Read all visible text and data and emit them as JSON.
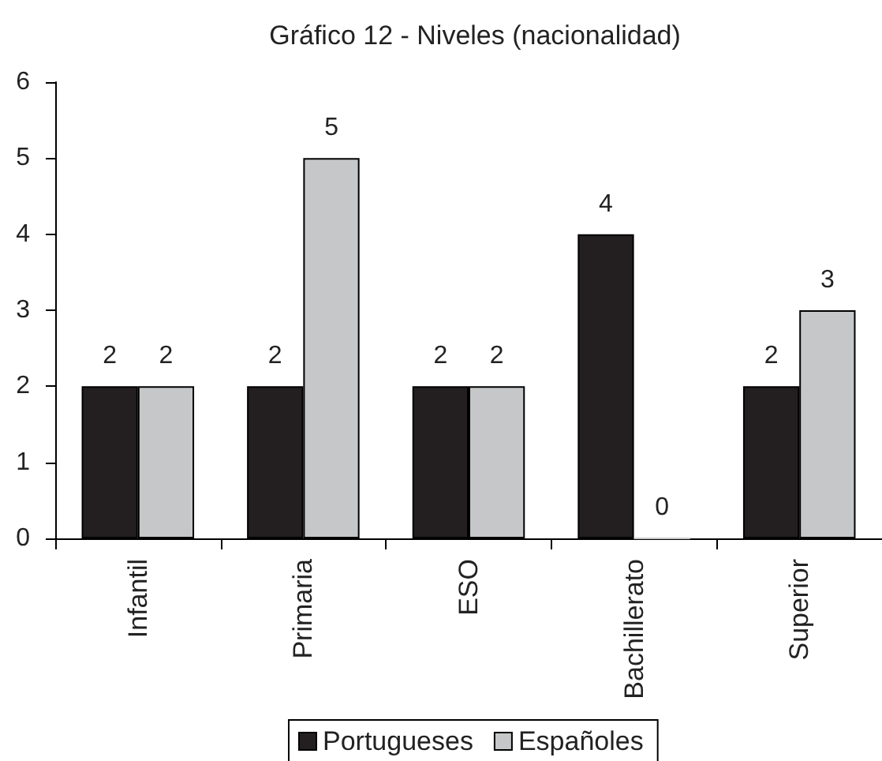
{
  "chart_data": {
    "type": "bar",
    "title": "Gráfico 12 - Niveles (nacionalidad)",
    "categories": [
      "Infantil",
      "Primaria",
      "ESO",
      "Bachillerato",
      "Superior"
    ],
    "series": [
      {
        "name": "Portugueses",
        "color": "#231f20",
        "values": [
          2,
          2,
          2,
          4,
          2
        ]
      },
      {
        "name": "Españoles",
        "color": "#c6c7c8",
        "values": [
          2,
          5,
          2,
          0,
          3
        ]
      }
    ],
    "ylim": [
      0,
      6
    ],
    "yticks": [
      0,
      1,
      2,
      3,
      4,
      5,
      6
    ],
    "data_labels": true,
    "legend": "bottom"
  }
}
